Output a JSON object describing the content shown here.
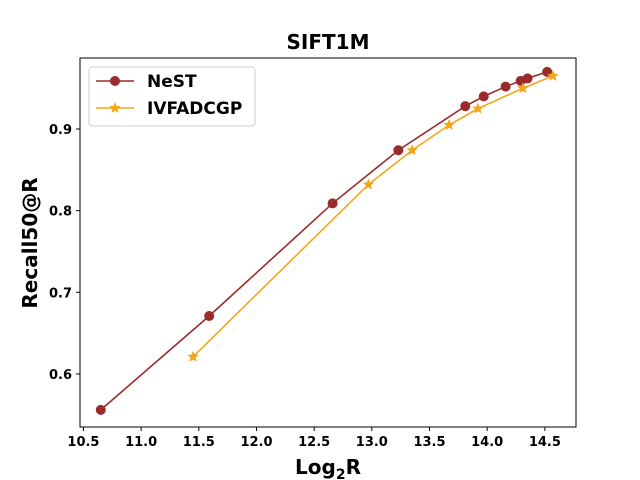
{
  "chart_data": {
    "type": "line",
    "title": "SIFT1M",
    "xlabel": "Log",
    "xlabel_sub": "2",
    "xlabel_tail": "R",
    "ylabel": "Recall50@R",
    "xlim": [
      10.47,
      14.77
    ],
    "ylim": [
      0.535,
      0.987
    ],
    "xticks": [
      10.5,
      11.0,
      11.5,
      12.0,
      12.5,
      13.0,
      13.5,
      14.0,
      14.5
    ],
    "xtick_labels": [
      "10.5",
      "11.0",
      "11.5",
      "12.0",
      "12.5",
      "13.0",
      "13.5",
      "14.0",
      "14.5"
    ],
    "yticks": [
      0.6,
      0.7,
      0.8,
      0.9
    ],
    "ytick_labels": [
      "0.6",
      "0.7",
      "0.8",
      "0.9"
    ],
    "grid": false,
    "legend_position": "top-left",
    "series": [
      {
        "name": "NeST",
        "color": "#9b2a2a",
        "marker": "circle",
        "x": [
          10.65,
          11.59,
          12.66,
          13.23,
          13.81,
          13.97,
          14.16,
          14.29,
          14.35,
          14.52
        ],
        "y": [
          0.556,
          0.671,
          0.809,
          0.874,
          0.928,
          0.94,
          0.952,
          0.959,
          0.962,
          0.97
        ]
      },
      {
        "name": "IVFADCGP",
        "color": "#f2a71b",
        "marker": "star",
        "x": [
          11.45,
          12.97,
          13.35,
          13.67,
          13.92,
          14.31,
          14.57
        ],
        "y": [
          0.621,
          0.832,
          0.874,
          0.905,
          0.925,
          0.95,
          0.965
        ]
      }
    ]
  }
}
